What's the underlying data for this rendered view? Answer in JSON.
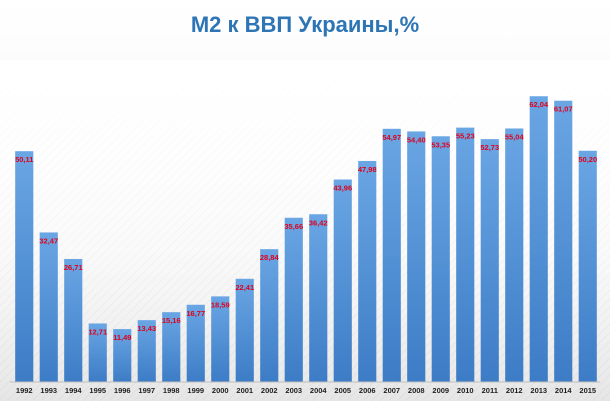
{
  "chart_data": {
    "type": "bar",
    "title": "М2 к ВВП Украины,%",
    "xlabel": "",
    "ylabel": "",
    "categories": [
      "1992",
      "1993",
      "1994",
      "1995",
      "1996",
      "1997",
      "1998",
      "1999",
      "2000",
      "2001",
      "2002",
      "2003",
      "2004",
      "2005",
      "2006",
      "2007",
      "2008",
      "2009",
      "2010",
      "2011",
      "2012",
      "2013",
      "2014",
      "2015"
    ],
    "values": [
      50.11,
      32.47,
      26.71,
      12.71,
      11.49,
      13.43,
      15.16,
      16.77,
      18.59,
      22.41,
      28.84,
      35.66,
      36.42,
      43.96,
      47.98,
      54.97,
      54.4,
      53.35,
      55.23,
      52.73,
      55.04,
      62.04,
      61.07,
      50.2
    ],
    "data_labels": [
      "50,11",
      "32,47",
      "26,71",
      "12,71",
      "11,49",
      "13,43",
      "15,16",
      "16,77",
      "18,59",
      "22,41",
      "28,84",
      "35,66",
      "36,42",
      "43,96",
      "47,98",
      "54,97",
      "54,40",
      "53,35",
      "55,23",
      "52,73",
      "55,04",
      "62,04",
      "61,07",
      "50,20"
    ],
    "ylim": [
      0,
      66
    ],
    "grid": false,
    "legend": "none",
    "colors": {
      "title": "#2e75b6",
      "bar_top": "#6aa6e4",
      "bar_bottom": "#3d7cc6",
      "data_label": "#e0001b",
      "tick_label": "#1f1f1f",
      "axis": "#bfbfbf"
    }
  }
}
